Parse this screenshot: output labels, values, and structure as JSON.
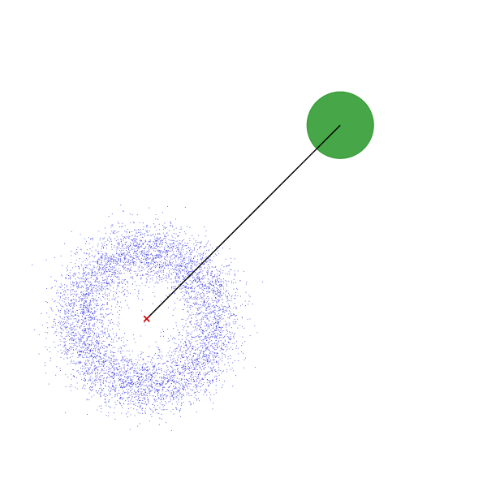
{
  "chart_data": {
    "type": "scatter",
    "title": "",
    "xlabel": "",
    "ylabel": "",
    "axes_visible": false,
    "grid": false,
    "xlim": [
      -1.0,
      1.0
    ],
    "ylim": [
      -1.0,
      1.0
    ],
    "ring": {
      "name": "",
      "center": [
        -0.45,
        -0.35
      ],
      "inner_radius": 0.17,
      "outer_radius": 0.47,
      "point_count": 6000,
      "color": "#1f1fdd"
    },
    "center_marker": {
      "position": [
        -0.45,
        -0.35
      ],
      "symbol": "x",
      "color": "#cc0000"
    },
    "target": {
      "position": [
        0.45,
        0.55
      ],
      "radius": 0.155,
      "color": "#2e9a2e"
    },
    "connector": {
      "from": [
        -0.45,
        -0.35
      ],
      "to": [
        0.45,
        0.55
      ],
      "color": "#000000"
    }
  }
}
